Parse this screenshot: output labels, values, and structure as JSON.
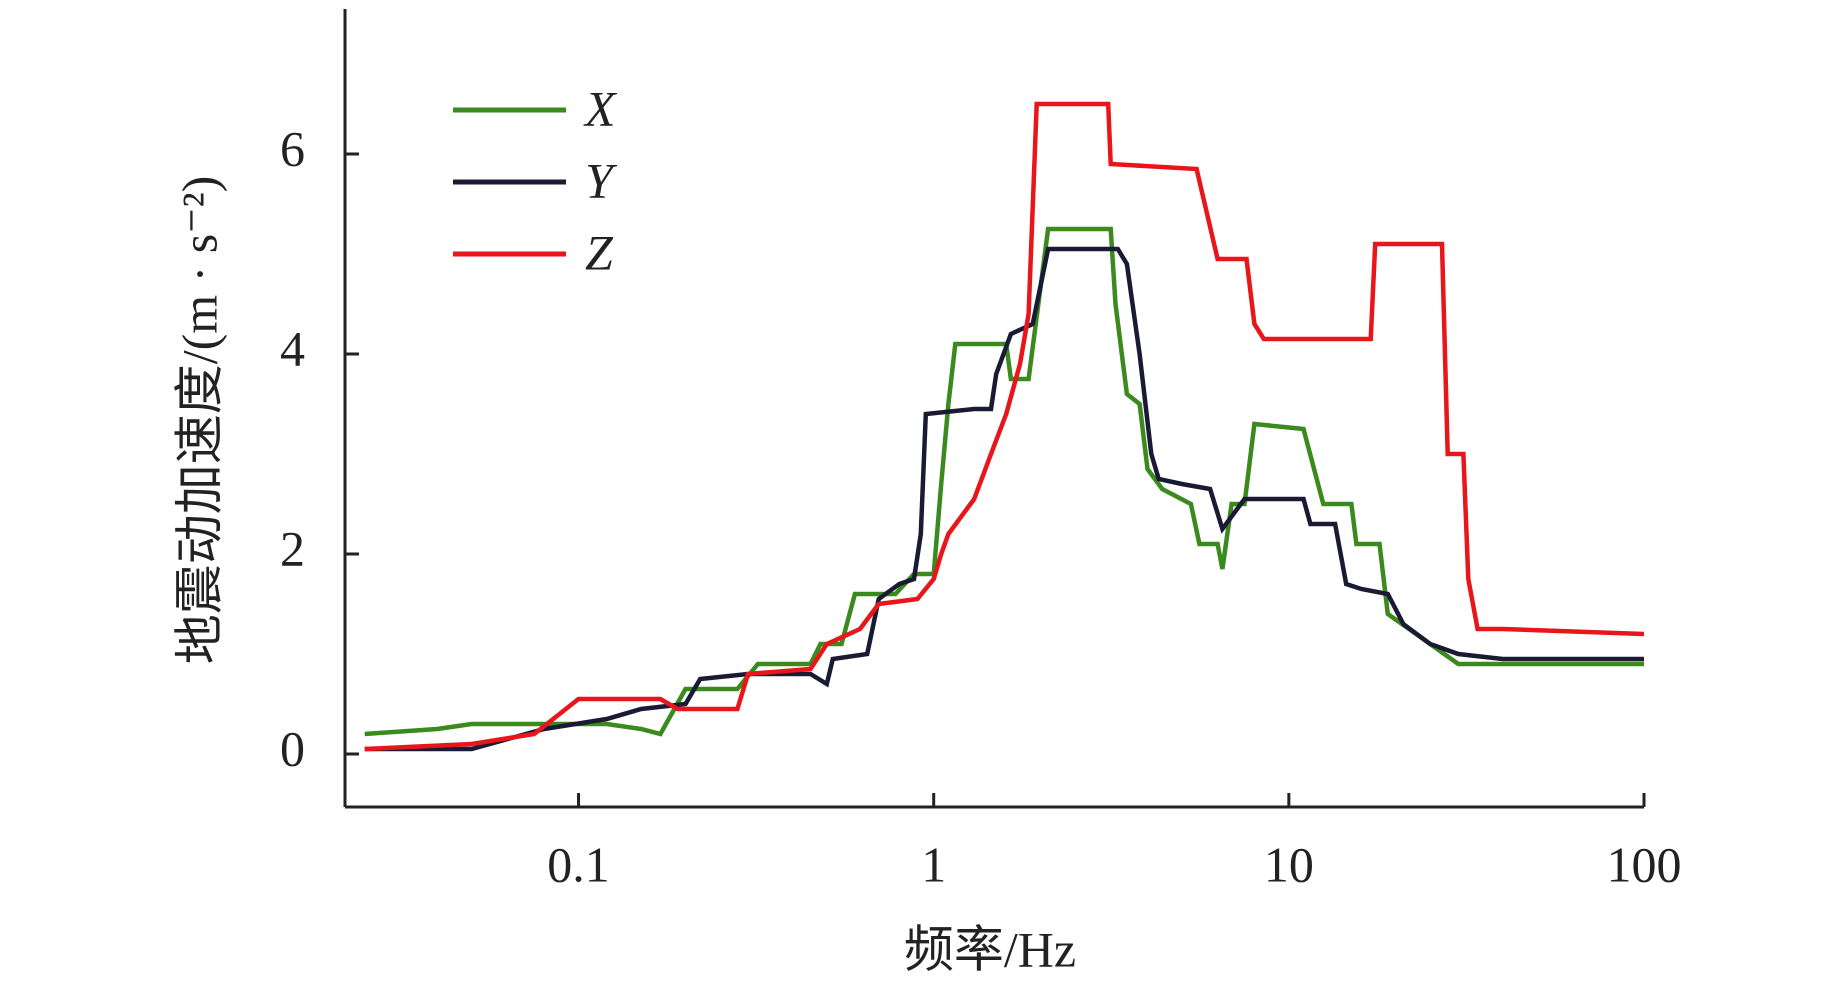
{
  "chart_data": {
    "type": "line",
    "x_label": "频率/Hz",
    "y_label": "地震动加速度/(m · s⁻²)",
    "xscale": "log",
    "xlim": [
      0.022,
      100
    ],
    "xticks": [
      0.1,
      1,
      10,
      100
    ],
    "ylim": [
      -0.53,
      7.45
    ],
    "yticks": [
      0,
      2,
      4,
      6
    ],
    "legend": "upper left",
    "series": [
      {
        "name": "X",
        "color": "#3a8a1e",
        "x": [
          0.025,
          0.04,
          0.05,
          0.1,
          0.12,
          0.15,
          0.17,
          0.2,
          0.28,
          0.32,
          0.45,
          0.48,
          0.55,
          0.6,
          0.72,
          0.78,
          0.88,
          1.0,
          1.05,
          1.1,
          1.15,
          1.6,
          1.65,
          1.85,
          2.1,
          3.15,
          3.25,
          3.5,
          3.8,
          4.0,
          4.4,
          5.3,
          5.6,
          6.3,
          6.5,
          6.9,
          7.5,
          8.0,
          11,
          12.5,
          15,
          15.5,
          18,
          19,
          25,
          30,
          100
        ],
        "values": [
          0.2,
          0.25,
          0.3,
          0.3,
          0.3,
          0.25,
          0.2,
          0.65,
          0.65,
          0.9,
          0.9,
          1.1,
          1.1,
          1.6,
          1.6,
          1.6,
          1.8,
          1.8,
          2.7,
          3.5,
          4.1,
          4.1,
          3.75,
          3.75,
          5.25,
          5.25,
          4.5,
          3.6,
          3.5,
          2.85,
          2.65,
          2.5,
          2.1,
          2.1,
          1.85,
          2.5,
          2.5,
          3.3,
          3.25,
          2.5,
          2.5,
          2.1,
          2.1,
          1.4,
          1.1,
          0.9,
          0.9
        ]
      },
      {
        "name": "Y",
        "color": "#1a1a35",
        "x": [
          0.025,
          0.05,
          0.08,
          0.12,
          0.15,
          0.2,
          0.22,
          0.3,
          0.45,
          0.5,
          0.52,
          0.65,
          0.7,
          0.8,
          0.88,
          0.92,
          0.95,
          1.3,
          1.45,
          1.5,
          1.65,
          1.9,
          2.1,
          3.3,
          3.5,
          3.8,
          4.1,
          4.3,
          5.0,
          6.0,
          6.5,
          7.5,
          11,
          11.5,
          13.5,
          14.5,
          16,
          19,
          21,
          25,
          30,
          40,
          100
        ],
        "values": [
          0.05,
          0.05,
          0.25,
          0.35,
          0.45,
          0.5,
          0.75,
          0.8,
          0.8,
          0.7,
          0.95,
          1.0,
          1.55,
          1.7,
          1.75,
          2.2,
          3.4,
          3.45,
          3.45,
          3.8,
          4.2,
          4.3,
          5.05,
          5.05,
          4.9,
          4.0,
          3.0,
          2.75,
          2.7,
          2.65,
          2.25,
          2.55,
          2.55,
          2.3,
          2.3,
          1.7,
          1.65,
          1.6,
          1.3,
          1.1,
          1.0,
          0.95,
          0.95
        ]
      },
      {
        "name": "Z",
        "color": "#e8161b",
        "x": [
          0.025,
          0.05,
          0.075,
          0.1,
          0.17,
          0.19,
          0.28,
          0.3,
          0.45,
          0.5,
          0.62,
          0.7,
          0.9,
          1.0,
          1.05,
          1.1,
          1.3,
          1.45,
          1.6,
          1.75,
          1.85,
          1.95,
          3.1,
          3.15,
          5.5,
          6.3,
          7.6,
          8.0,
          8.5,
          17,
          17.5,
          27,
          28,
          31,
          32,
          34,
          40,
          100
        ],
        "values": [
          0.05,
          0.1,
          0.2,
          0.55,
          0.55,
          0.45,
          0.45,
          0.8,
          0.85,
          1.1,
          1.25,
          1.5,
          1.55,
          1.75,
          2.0,
          2.2,
          2.55,
          3.0,
          3.4,
          3.9,
          4.4,
          6.5,
          6.5,
          5.9,
          5.85,
          4.95,
          4.95,
          4.3,
          4.15,
          4.15,
          5.1,
          5.1,
          3.0,
          3.0,
          1.75,
          1.25,
          1.25,
          1.2
        ]
      }
    ]
  }
}
